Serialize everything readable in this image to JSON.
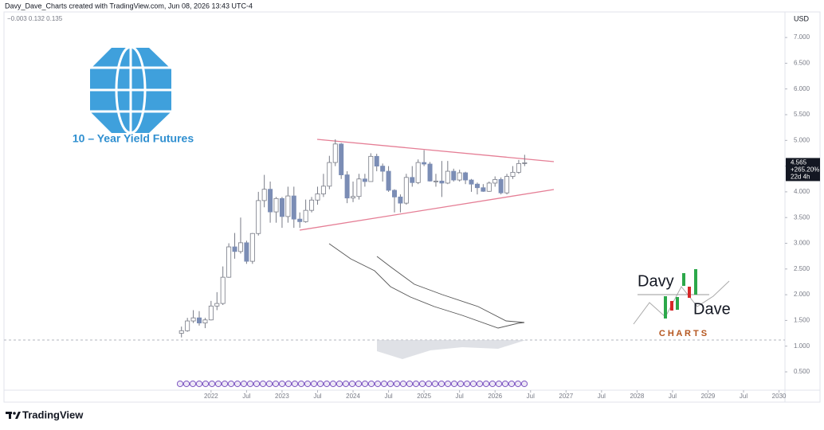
{
  "header": {
    "credit": "Davy_Dave_Charts created with TradingView.com, Jun 08, 2026 13:43 UTC-4",
    "indicator_values": "−0.003 0.132 0.135",
    "currency": "USD"
  },
  "logo": {
    "title": "10 – Year Yield Futures"
  },
  "brand": {
    "line1": "Davy",
    "line2": "Dave",
    "line3": "C H A R T S"
  },
  "footer": {
    "brand": "TradingView"
  },
  "chart_data": {
    "type": "candlestick",
    "x": [
      "2021-08",
      "2021-09",
      "2021-10",
      "2021-11",
      "2021-12",
      "2022-01",
      "2022-02",
      "2022-03",
      "2022-04",
      "2022-05",
      "2022-06",
      "2022-07",
      "2022-08",
      "2022-09",
      "2022-10",
      "2022-11",
      "2022-12",
      "2023-01",
      "2023-02",
      "2023-03",
      "2023-04",
      "2023-05",
      "2023-06",
      "2023-07",
      "2023-08",
      "2023-09",
      "2023-10",
      "2023-11",
      "2023-12",
      "2024-01",
      "2024-02",
      "2024-03",
      "2024-04",
      "2024-05",
      "2024-06",
      "2024-07",
      "2024-08",
      "2024-09",
      "2024-10",
      "2024-11",
      "2024-12",
      "2025-01",
      "2025-02",
      "2025-03",
      "2025-04",
      "2025-05",
      "2025-06",
      "2025-07",
      "2025-08",
      "2025-09",
      "2025-10",
      "2025-11",
      "2025-12",
      "2026-01",
      "2026-02",
      "2026-03",
      "2026-04",
      "2026-05",
      "2026-06"
    ],
    "open": [
      1.25,
      1.3,
      1.49,
      1.55,
      1.45,
      1.51,
      1.78,
      1.83,
      2.34,
      2.93,
      2.84,
      3.01,
      2.65,
      3.19,
      3.83,
      4.05,
      3.61,
      3.87,
      3.52,
      3.92,
      3.47,
      3.42,
      3.64,
      3.84,
      3.96,
      4.11,
      4.57,
      4.93,
      4.33,
      3.88,
      3.91,
      4.25,
      4.2,
      4.69,
      4.5,
      4.4,
      4.03,
      3.9,
      3.78,
      4.28,
      4.18,
      4.57,
      4.54,
      4.21,
      4.21,
      4.17,
      4.4,
      4.23,
      4.37,
      4.23,
      4.15,
      4.08,
      4.01,
      4.17,
      4.24,
      3.98,
      4.3,
      4.38,
      4.55
    ],
    "high": [
      1.38,
      1.55,
      1.7,
      1.68,
      1.55,
      1.88,
      2.05,
      2.55,
      3.0,
      3.2,
      3.5,
      3.05,
      3.2,
      4.0,
      4.33,
      4.2,
      3.9,
      3.9,
      4.1,
      4.1,
      3.6,
      3.85,
      3.9,
      4.1,
      4.35,
      4.7,
      5.02,
      4.95,
      4.4,
      4.2,
      4.35,
      4.35,
      4.75,
      4.74,
      4.55,
      4.5,
      4.05,
      3.95,
      4.35,
      4.5,
      4.63,
      4.81,
      4.58,
      4.35,
      4.6,
      4.6,
      4.45,
      4.43,
      4.39,
      4.25,
      4.18,
      4.15,
      4.2,
      4.3,
      4.28,
      4.35,
      4.5,
      4.62,
      4.72
    ],
    "low": [
      1.17,
      1.28,
      1.45,
      1.4,
      1.35,
      1.5,
      1.7,
      1.8,
      2.33,
      2.7,
      2.8,
      2.6,
      2.6,
      3.15,
      3.7,
      3.4,
      3.4,
      3.3,
      3.4,
      3.3,
      3.3,
      3.4,
      3.6,
      3.75,
      3.9,
      4.05,
      4.5,
      4.25,
      3.78,
      3.8,
      3.85,
      4.1,
      4.2,
      4.4,
      4.2,
      4.0,
      3.6,
      3.6,
      3.75,
      4.1,
      4.15,
      4.5,
      4.2,
      4.1,
      3.9,
      4.15,
      4.2,
      4.2,
      4.15,
      4.0,
      3.95,
      4.0,
      4.0,
      4.1,
      3.95,
      3.95,
      4.25,
      4.35,
      4.5
    ],
    "close": [
      1.3,
      1.49,
      1.55,
      1.45,
      1.51,
      1.78,
      1.83,
      2.34,
      2.93,
      2.84,
      3.01,
      2.65,
      3.19,
      3.83,
      4.05,
      3.61,
      3.87,
      3.52,
      3.92,
      3.47,
      3.42,
      3.64,
      3.84,
      3.96,
      4.11,
      4.57,
      4.93,
      4.33,
      3.88,
      3.91,
      4.25,
      4.2,
      4.69,
      4.5,
      4.4,
      4.03,
      3.9,
      3.78,
      4.28,
      4.18,
      4.57,
      4.54,
      4.21,
      4.21,
      4.17,
      4.4,
      4.23,
      4.37,
      4.23,
      4.15,
      4.08,
      4.01,
      4.17,
      4.24,
      3.98,
      4.3,
      4.38,
      4.55,
      4.565
    ],
    "up_color": "#ffffff",
    "down_color": "#7b8db5",
    "wick_color": "#787b86",
    "last_price": {
      "value": 4.565,
      "label": "4.565"
    },
    "change": "+265.20%",
    "countdown": "22d 4h",
    "xlim": [
      "2019-02",
      "2030-02"
    ],
    "xticks": [
      {
        "value": "2022-01",
        "label": "2022"
      },
      {
        "value": "2022-07",
        "label": "Jul"
      },
      {
        "value": "2023-01",
        "label": "2023"
      },
      {
        "value": "2023-07",
        "label": "Jul"
      },
      {
        "value": "2024-01",
        "label": "2024"
      },
      {
        "value": "2024-07",
        "label": "Jul"
      },
      {
        "value": "2025-01",
        "label": "2025"
      },
      {
        "value": "2025-07",
        "label": "Jul"
      },
      {
        "value": "2026-01",
        "label": "2026"
      },
      {
        "value": "2026-07",
        "label": "Jul"
      },
      {
        "value": "2027-01",
        "label": "2027"
      },
      {
        "value": "2027-07",
        "label": "Jul"
      },
      {
        "value": "2028-01",
        "label": "2028"
      },
      {
        "value": "2028-07",
        "label": "Jul"
      },
      {
        "value": "2029-01",
        "label": "2029"
      },
      {
        "value": "2029-07",
        "label": "Jul"
      },
      {
        "value": "2030-01",
        "label": "2030"
      }
    ],
    "ylim": [
      0.144,
      7.497
    ],
    "yticks": [
      {
        "value": 0.5,
        "label": "0.500"
      },
      {
        "value": 1,
        "label": "1.000"
      },
      {
        "value": 1.5,
        "label": "1.500"
      },
      {
        "value": 2,
        "label": "2.000"
      },
      {
        "value": 2.5,
        "label": "2.500"
      },
      {
        "value": 3,
        "label": "3.000"
      },
      {
        "value": 3.5,
        "label": "3.500"
      },
      {
        "value": 4,
        "label": "4.000"
      },
      {
        "value": 4.5,
        "label": "4.500"
      },
      {
        "value": 5,
        "label": "5.000"
      },
      {
        "value": 5.5,
        "label": "5.500"
      },
      {
        "value": 6,
        "label": "6.000"
      },
      {
        "value": 6.5,
        "label": "6.500"
      },
      {
        "value": 7,
        "label": "7.000"
      }
    ]
  }
}
